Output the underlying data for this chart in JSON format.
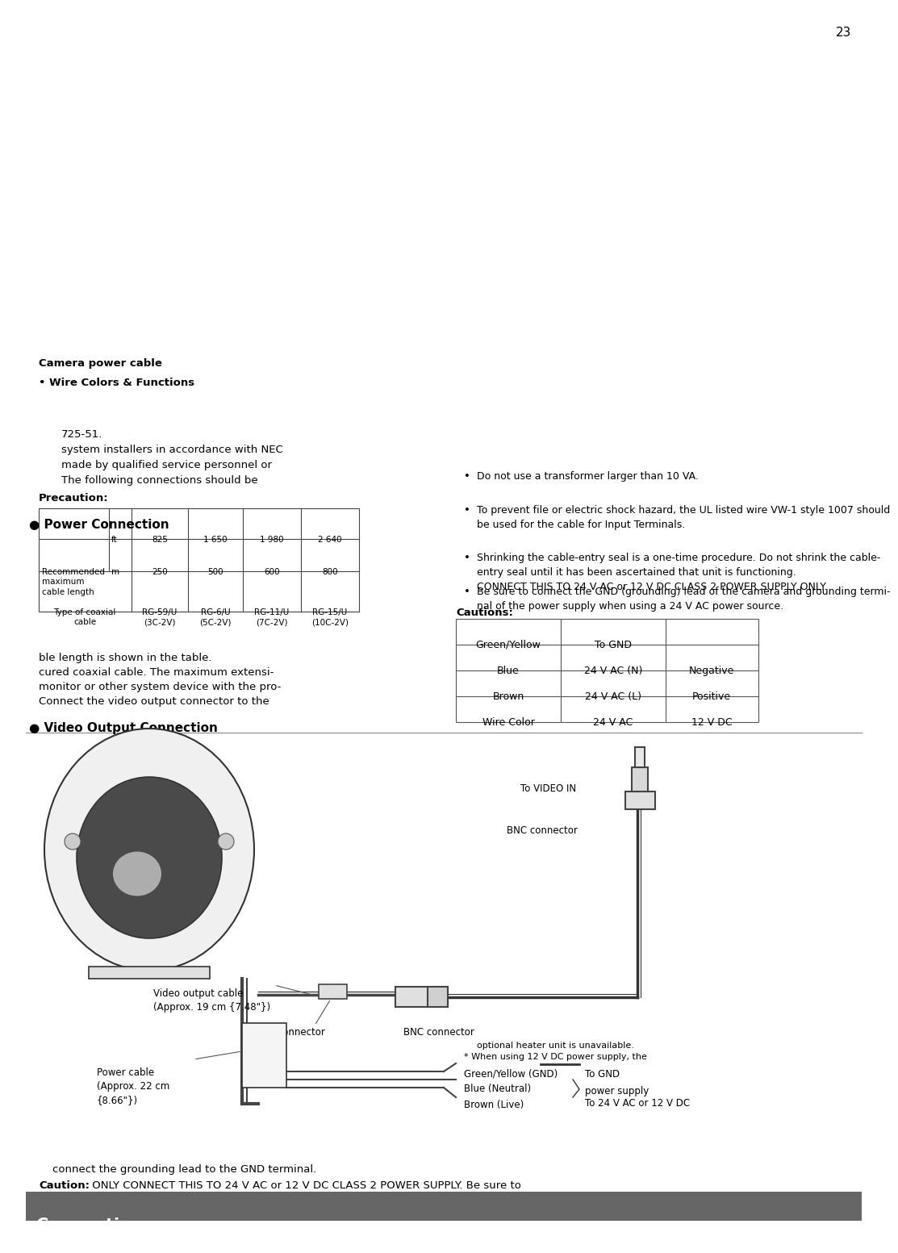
{
  "title": "Connections",
  "title_bg": "#666666",
  "title_color": "#ffffff",
  "page_bg": "#ffffff",
  "page_number": "23",
  "caution_line1_bold": "Caution:",
  "caution_line1_rest": " ONLY CONNECT THIS TO 24 V AC or 12 V DC CLASS 2 POWER SUPPLY. Be sure to",
  "caution_line2": "    connect the grounding lead to the GND terminal.",
  "section1_title": "● Video Output Connection",
  "section1_body_lines": [
    "Connect the video output connector to the",
    "monitor or other system device with the pro-",
    "cured coaxial cable. The maximum extensi-",
    "ble length is shown in the table."
  ],
  "coax_headers": [
    "Type of coaxial\ncable",
    "RG-59/U\n(3C-2V)",
    "RG-6/U\n(5C-2V)",
    "RG-11/U\n(7C-2V)",
    "RG-15/U\n(10C-2V)"
  ],
  "coax_row_label": "Recommended\nmaximum\ncable length",
  "coax_unit_col": [
    "m",
    "ft"
  ],
  "coax_m_vals": [
    "250",
    "500",
    "600",
    "800"
  ],
  "coax_ft_vals": [
    "825",
    "1 650",
    "1 980",
    "2 640"
  ],
  "section2_title": "● Power Connection",
  "precaution_title": "Precaution:",
  "precaution_lines": [
    "The following connections should be",
    "made by qualified service personnel or",
    "system installers in accordance with NEC",
    "725-51."
  ],
  "wire_colors_title": "• Wire Colors & Functions",
  "camera_power_cable": "Camera power cable",
  "wire_table_headers": [
    "Wire Color",
    "24 V AC",
    "12 V DC"
  ],
  "wire_table_rows": [
    [
      "Brown",
      "24 V AC (L)",
      "Positive"
    ],
    [
      "Blue",
      "24 V AC (N)",
      "Negative"
    ],
    [
      "Green/Yellow",
      "To GND",
      ""
    ]
  ],
  "cautions_title": "Cautions:",
  "cautions_bullets": [
    "Be sure to connect the GND (grounding) lead of the camera and grounding termi-\nnal of the power supply when using a 24 V AC power source.",
    "Shrinking the cable-entry seal is a one-time procedure. Do not shrink the cable-\nentry seal until it has been ascertained that unit is functioning.\nCONNECT THIS TO 24 V AC or 12 V DC CLASS 2 POWER SUPPLY ONLY.",
    "To prevent file or electric shock hazard, the UL listed wire VW-1 style 1007 should\nbe used for the cable for Input Terminals.",
    "Do not use a transformer larger than 10 VA."
  ]
}
